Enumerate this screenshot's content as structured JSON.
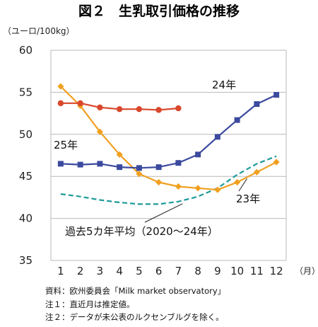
{
  "chart_data": {
    "type": "line",
    "title": "図２　生乳取引価格の推移",
    "ylabel": "（ユーロ/100kg）",
    "xlabel": "（月）",
    "ylim": [
      35,
      60
    ],
    "yticks": [
      35,
      40,
      45,
      50,
      55,
      60
    ],
    "categories": [
      "1",
      "2",
      "3",
      "4",
      "5",
      "6",
      "7",
      "8",
      "9",
      "10",
      "11",
      "12"
    ],
    "grid": true,
    "series": [
      {
        "name": "25年",
        "color": "#d9472b",
        "marker": "circle",
        "style": "solid",
        "values": [
          53.7,
          53.7,
          53.2,
          53.0,
          53.0,
          52.9,
          53.1,
          null,
          null,
          null,
          null,
          null
        ]
      },
      {
        "name": "24年",
        "color": "#3b4a9e",
        "marker": "square",
        "style": "solid",
        "values": [
          46.5,
          46.4,
          46.5,
          46.1,
          46.0,
          46.1,
          46.6,
          47.6,
          49.7,
          51.7,
          53.6,
          54.7
        ]
      },
      {
        "name": "23年",
        "color": "#f0a020",
        "marker": "diamond",
        "style": "solid",
        "values": [
          55.7,
          53.4,
          50.3,
          47.6,
          45.3,
          44.3,
          43.8,
          43.6,
          43.4,
          44.3,
          45.5,
          46.7
        ]
      },
      {
        "name": "過去5カ年平均（2020～24年）",
        "color": "#1e9a9a",
        "marker": "none",
        "style": "dashed",
        "values": [
          42.9,
          42.6,
          42.2,
          41.9,
          41.7,
          41.7,
          42.0,
          42.6,
          43.6,
          45.2,
          46.5,
          47.4
        ]
      }
    ]
  },
  "notes": [
    "資料：欧州委員会「Milk market observatory」",
    "注１：直近月は推定値。",
    "注２：データが未公表のルクセンブルグを除く。"
  ]
}
